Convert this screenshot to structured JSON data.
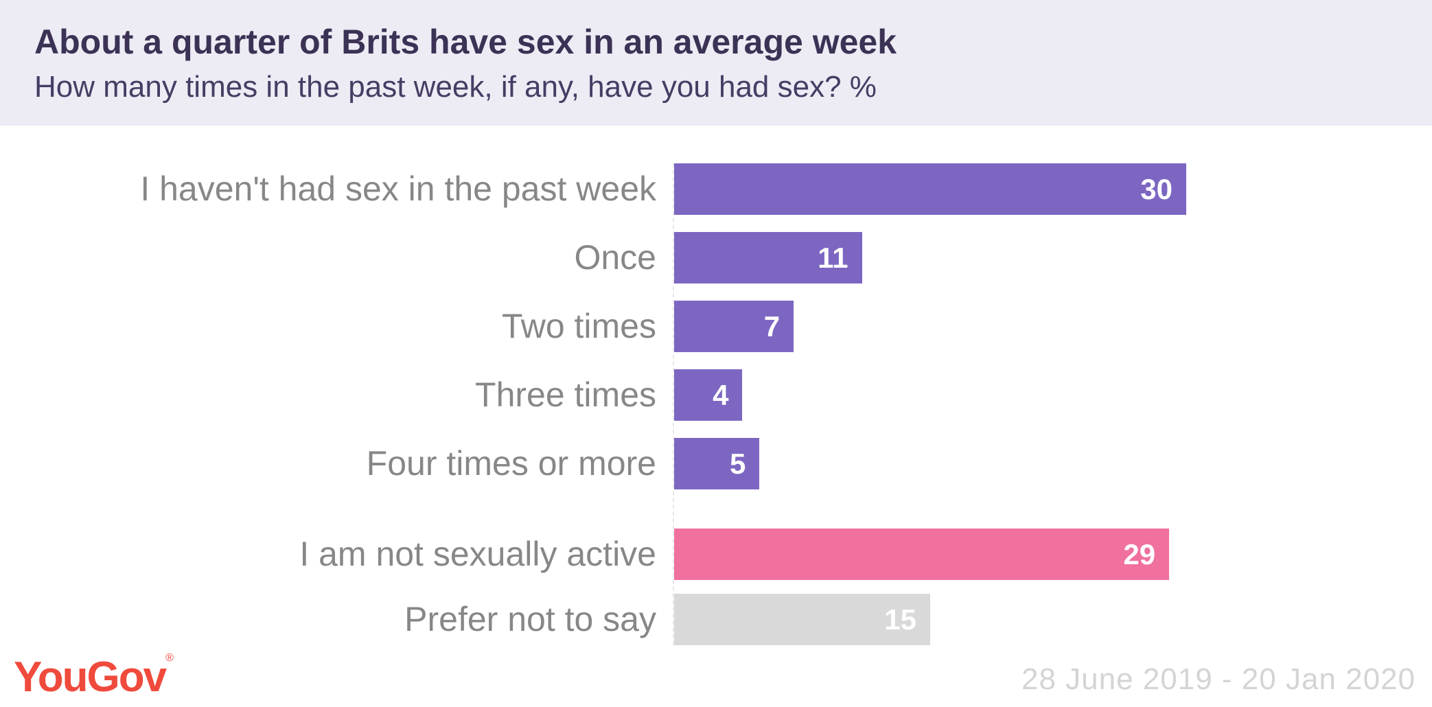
{
  "header": {
    "title": "About a quarter of Brits have sex in an average week",
    "subtitle": "How many times in the past week, if any, have you had sex? %"
  },
  "chart_data": {
    "type": "bar",
    "orientation": "horizontal",
    "title": "About a quarter of Brits have sex in an average week",
    "question": "How many times in the past week, if any, have you had sex?",
    "units": "%",
    "categories": [
      "I haven't had sex in the past week",
      "Once",
      "Two times",
      "Three times",
      "Four times or more",
      "I am not sexually active",
      "Prefer not to say"
    ],
    "values": [
      30,
      11,
      7,
      4,
      5,
      29,
      15
    ],
    "bar_colors": [
      "purple",
      "purple",
      "purple",
      "purple",
      "purple",
      "pink",
      "gray"
    ],
    "colors": {
      "purple": "#7C66C2",
      "pink": "#F0709F",
      "gray": "#D9D9D9"
    },
    "xlim": [
      0,
      30
    ],
    "grid": false,
    "legend": "none",
    "value_labels": "inside-end",
    "group_gap_before_index": 5
  },
  "footer": {
    "logo_text": "YouGov",
    "logo_mark": "®",
    "date_range": "28 June 2019 - 20 Jan 2020"
  },
  "ui_colors": {
    "header_bg": "#EDEBF4",
    "title_text": "#3B3255",
    "category_label_text": "#878787",
    "value_text": "#FFFFFF",
    "date_text": "#D4D4D4",
    "logo_red": "#EF4A3C"
  }
}
